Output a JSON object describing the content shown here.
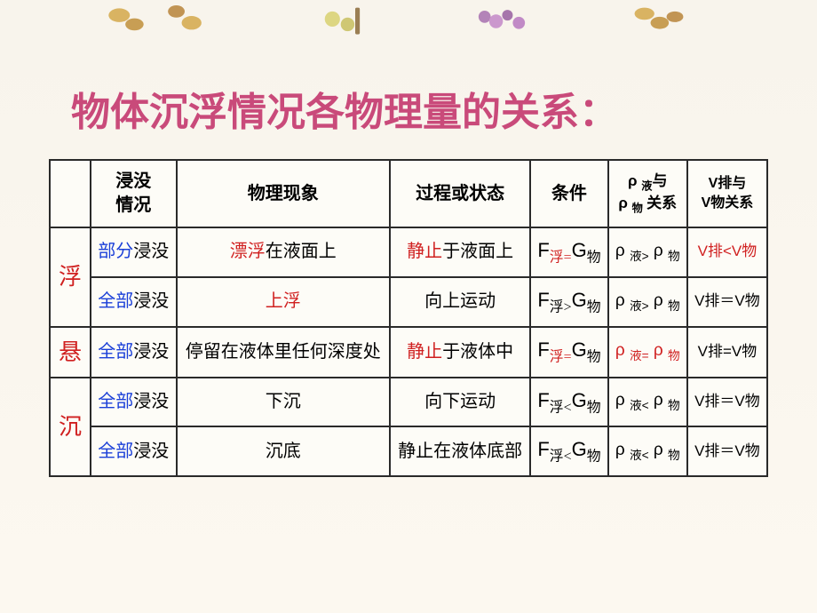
{
  "title": "物体沉浮情况各物理量的关系：",
  "headers": {
    "c1": "",
    "c2_l1": "浸没",
    "c2_l2": "情况",
    "c3": "物理现象",
    "c4": "过程或状态",
    "c5": "条件",
    "c6_l1": "ρ ",
    "c6_l1_sub": "液",
    "c6_mid": "与",
    "c6_l2": "ρ ",
    "c6_l2_sub": "物",
    "c6_l2_tail": " 关系",
    "c7_l1": "V排与",
    "c7_l2": "V物关系"
  },
  "categories": {
    "float": "浮",
    "suspend": "悬",
    "sink": "沉"
  },
  "rows": [
    {
      "cat": "float",
      "immerse_pre": "部分",
      "immerse_post": "浸没",
      "phenom_pre": "漂浮",
      "phenom_post": "在液面上",
      "phenom_red_pre": true,
      "state_pre": "静止",
      "state_post": "于液面上",
      "state_red_pre": true,
      "F": "F",
      "Fsub": "浮",
      "rel": "=",
      "G": "G",
      "Gsub": "物",
      "cond_red": true,
      "rho_rel": ">",
      "rho_red": false,
      "v": "V排<V物",
      "v_red": true
    },
    {
      "cat": "float",
      "immerse_pre": "全部",
      "immerse_post": "浸没",
      "phenom_pre": "上浮",
      "phenom_post": "",
      "phenom_red_pre": true,
      "state_pre": "",
      "state_post": "向上运动",
      "state_red_pre": false,
      "F": "F",
      "Fsub": "浮",
      "rel": ">",
      "G": "G",
      "Gsub": "物",
      "cond_red": false,
      "rho_rel": ">",
      "rho_red": false,
      "v": "V排＝V物",
      "v_red": false
    },
    {
      "cat": "suspend",
      "immerse_pre": "全部",
      "immerse_post": "浸没",
      "phenom_pre": "",
      "phenom_post": "停留在液体里任何深度处",
      "phenom_red_pre": false,
      "state_pre": "静止",
      "state_post": "于液体中",
      "state_red_pre": true,
      "F": "F",
      "Fsub": "浮",
      "rel": "=",
      "G": "G",
      "Gsub": "物",
      "cond_red": true,
      "rho_rel": "=",
      "rho_red": true,
      "v": "V排=V物",
      "v_red": false
    },
    {
      "cat": "sink",
      "immerse_pre": "全部",
      "immerse_post": "浸没",
      "phenom_pre": "",
      "phenom_post": "下沉",
      "phenom_red_pre": false,
      "state_pre": "",
      "state_post": "向下运动",
      "state_red_pre": false,
      "F": "F",
      "Fsub": "浮",
      "rel": "<",
      "G": "G",
      "Gsub": "物",
      "cond_red": false,
      "rho_rel": "<",
      "rho_red": false,
      "v": "V排＝V物",
      "v_red": false
    },
    {
      "cat": "sink",
      "immerse_pre": "全部",
      "immerse_post": "浸没",
      "phenom_pre": "",
      "phenom_post": "沉底",
      "phenom_red_pre": false,
      "state_pre": "",
      "state_post": "静止在液体底部",
      "state_red_pre": false,
      "F": "F",
      "Fsub": "浮",
      "rel": "<",
      "G": "G",
      "Gsub": "物",
      "cond_red": false,
      "rho_rel": "<",
      "rho_red": false,
      "v": "V排＝V物",
      "v_red": false
    }
  ],
  "colors": {
    "title": "#c94a7a",
    "red": "#d02020",
    "blue": "#1a3fd8",
    "border": "#2a2a2a",
    "bg": "#fdfcf7"
  }
}
